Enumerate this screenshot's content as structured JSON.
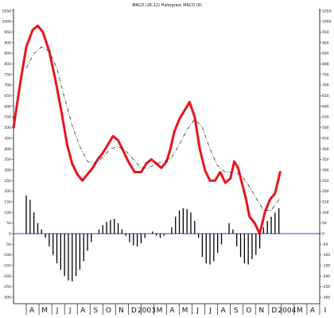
{
  "chart_data": {
    "type": "line",
    "title": "MACD (26,12) Histogram MACD (9)",
    "y_range": [
      -330,
      1060
    ],
    "y_ticks": [
      1050,
      1000,
      950,
      900,
      850,
      800,
      750,
      700,
      650,
      600,
      550,
      500,
      450,
      400,
      350,
      300,
      250,
      200,
      150,
      100,
      50,
      0,
      -50,
      -100,
      -150,
      -200,
      -250,
      -300
    ],
    "y_tick_labels": [
      "1050",
      "1000",
      "950",
      "900",
      "850",
      "800",
      "750",
      "700",
      "650",
      "600",
      "550",
      "500",
      "450",
      "400",
      "350",
      "300",
      "250",
      "200",
      "150",
      "100",
      "50",
      "0",
      "-50",
      "-100",
      "-150",
      "-200",
      "-250",
      "-300"
    ],
    "x_range": [
      0,
      24
    ],
    "x_ticks": [
      {
        "pos": 1,
        "label": "A"
      },
      {
        "pos": 2,
        "label": "M"
      },
      {
        "pos": 3,
        "label": "J"
      },
      {
        "pos": 4,
        "label": "J"
      },
      {
        "pos": 5,
        "label": "A"
      },
      {
        "pos": 6,
        "label": "S"
      },
      {
        "pos": 7,
        "label": "O"
      },
      {
        "pos": 8,
        "label": "N"
      },
      {
        "pos": 9,
        "label": "D"
      },
      {
        "pos": 10,
        "label": "2003"
      },
      {
        "pos": 11,
        "label": "M"
      },
      {
        "pos": 12,
        "label": "A"
      },
      {
        "pos": 13,
        "label": "M"
      },
      {
        "pos": 14,
        "label": "J"
      },
      {
        "pos": 15,
        "label": "J"
      },
      {
        "pos": 16,
        "label": "A"
      },
      {
        "pos": 17,
        "label": "S"
      },
      {
        "pos": 18,
        "label": "O"
      },
      {
        "pos": 19,
        "label": "N"
      },
      {
        "pos": 20,
        "label": "D"
      },
      {
        "pos": 21,
        "label": "2004"
      },
      {
        "pos": 22,
        "label": "M"
      },
      {
        "pos": 23,
        "label": "A"
      },
      {
        "pos": 24,
        "label": "I"
      }
    ],
    "zero_line": 0,
    "colors": {
      "macd": "#e8141c",
      "signal": "#333333",
      "histogram": "#000000",
      "zero": "#3a3aff"
    },
    "series": [
      {
        "role": "macd",
        "points": [
          [
            0,
            500
          ],
          [
            0.5,
            700
          ],
          [
            1,
            880
          ],
          [
            1.5,
            960
          ],
          [
            1.9,
            980
          ],
          [
            2.3,
            950
          ],
          [
            2.8,
            860
          ],
          [
            3.3,
            720
          ],
          [
            3.8,
            560
          ],
          [
            4.2,
            420
          ],
          [
            4.6,
            330
          ],
          [
            5,
            280
          ],
          [
            5.4,
            250
          ],
          [
            5.8,
            280
          ],
          [
            6.2,
            310
          ],
          [
            6.6,
            350
          ],
          [
            7,
            380
          ],
          [
            7.4,
            420
          ],
          [
            7.8,
            460
          ],
          [
            8.2,
            440
          ],
          [
            8.6,
            390
          ],
          [
            9,
            340
          ],
          [
            9.5,
            290
          ],
          [
            10,
            290
          ],
          [
            10.4,
            330
          ],
          [
            10.8,
            350
          ],
          [
            11.2,
            330
          ],
          [
            11.6,
            310
          ],
          [
            12,
            340
          ],
          [
            12.3,
            400
          ],
          [
            12.6,
            480
          ],
          [
            13,
            540
          ],
          [
            13.4,
            580
          ],
          [
            13.8,
            620
          ],
          [
            14.2,
            550
          ],
          [
            14.6,
            400
          ],
          [
            15,
            300
          ],
          [
            15.4,
            250
          ],
          [
            15.8,
            250
          ],
          [
            16.2,
            290
          ],
          [
            16.6,
            240
          ],
          [
            17,
            260
          ],
          [
            17.3,
            340
          ],
          [
            17.6,
            310
          ],
          [
            17.9,
            240
          ],
          [
            18.2,
            170
          ],
          [
            18.5,
            80
          ],
          [
            18.9,
            50
          ],
          [
            19.3,
            0
          ],
          [
            19.7,
            100
          ],
          [
            20.1,
            160
          ],
          [
            20.5,
            190
          ],
          [
            20.9,
            290
          ]
        ]
      },
      {
        "role": "signal",
        "points": [
          [
            1,
            780
          ],
          [
            1.6,
            850
          ],
          [
            2.2,
            880
          ],
          [
            2.8,
            860
          ],
          [
            3.4,
            780
          ],
          [
            4,
            640
          ],
          [
            4.6,
            510
          ],
          [
            5.2,
            410
          ],
          [
            5.8,
            340
          ],
          [
            6.4,
            330
          ],
          [
            7,
            360
          ],
          [
            7.6,
            400
          ],
          [
            8.2,
            410
          ],
          [
            8.8,
            390
          ],
          [
            9.4,
            350
          ],
          [
            10,
            310
          ],
          [
            10.6,
            310
          ],
          [
            11.2,
            330
          ],
          [
            11.8,
            340
          ],
          [
            12.4,
            360
          ],
          [
            13,
            420
          ],
          [
            13.6,
            490
          ],
          [
            14.2,
            540
          ],
          [
            14.8,
            500
          ],
          [
            15.4,
            400
          ],
          [
            16,
            320
          ],
          [
            16.6,
            290
          ],
          [
            17.2,
            290
          ],
          [
            17.8,
            280
          ],
          [
            18.4,
            230
          ],
          [
            19,
            170
          ],
          [
            19.6,
            110
          ],
          [
            20.2,
            110
          ],
          [
            20.9,
            170
          ]
        ]
      },
      {
        "role": "histogram",
        "points": [
          [
            1,
            180
          ],
          [
            1.3,
            160
          ],
          [
            1.6,
            100
          ],
          [
            1.9,
            50
          ],
          [
            2.2,
            20
          ],
          [
            2.5,
            -20
          ],
          [
            2.8,
            -60
          ],
          [
            3.1,
            -100
          ],
          [
            3.4,
            -140
          ],
          [
            3.7,
            -170
          ],
          [
            4,
            -200
          ],
          [
            4.3,
            -220
          ],
          [
            4.6,
            -225
          ],
          [
            4.9,
            -200
          ],
          [
            5.2,
            -170
          ],
          [
            5.5,
            -130
          ],
          [
            5.8,
            -80
          ],
          [
            6.1,
            -40
          ],
          [
            6.4,
            0
          ],
          [
            6.7,
            20
          ],
          [
            7,
            40
          ],
          [
            7.3,
            55
          ],
          [
            7.6,
            65
          ],
          [
            7.9,
            70
          ],
          [
            8.2,
            50
          ],
          [
            8.5,
            20
          ],
          [
            8.8,
            -10
          ],
          [
            9.1,
            -40
          ],
          [
            9.4,
            -55
          ],
          [
            9.7,
            -60
          ],
          [
            10,
            -45
          ],
          [
            10.3,
            -20
          ],
          [
            10.6,
            0
          ],
          [
            10.9,
            10
          ],
          [
            11.2,
            -10
          ],
          [
            11.5,
            -20
          ],
          [
            11.8,
            -10
          ],
          [
            12.1,
            0
          ],
          [
            12.4,
            30
          ],
          [
            12.7,
            80
          ],
          [
            13,
            110
          ],
          [
            13.3,
            120
          ],
          [
            13.6,
            115
          ],
          [
            13.9,
            100
          ],
          [
            14.2,
            60
          ],
          [
            14.5,
            -20
          ],
          [
            14.8,
            -110
          ],
          [
            15.1,
            -140
          ],
          [
            15.4,
            -145
          ],
          [
            15.7,
            -130
          ],
          [
            16,
            -90
          ],
          [
            16.3,
            -50
          ],
          [
            16.6,
            0
          ],
          [
            16.9,
            50
          ],
          [
            17.2,
            20
          ],
          [
            17.5,
            -60
          ],
          [
            17.8,
            -110
          ],
          [
            18.1,
            -140
          ],
          [
            18.4,
            -145
          ],
          [
            18.7,
            -120
          ],
          [
            19,
            -100
          ],
          [
            19.3,
            -70
          ],
          [
            19.6,
            30
          ],
          [
            19.9,
            60
          ],
          [
            20.2,
            80
          ],
          [
            20.5,
            100
          ],
          [
            20.8,
            120
          ]
        ]
      }
    ]
  }
}
